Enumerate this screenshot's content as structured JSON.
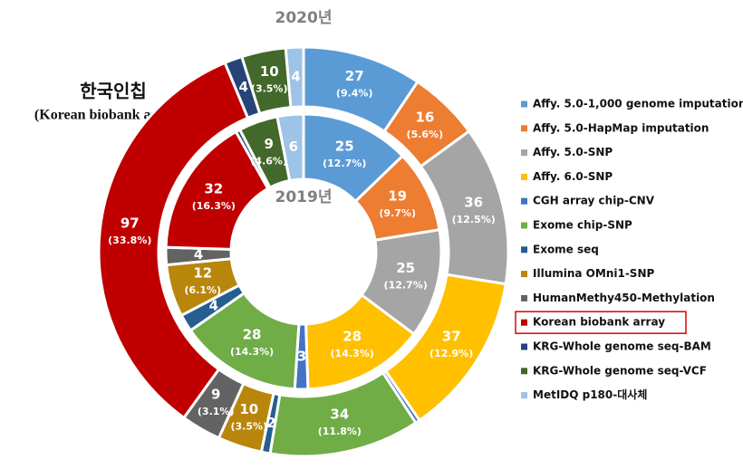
{
  "chart_data": {
    "type": "donut",
    "annotation": [
      "한국인칩",
      "(Korean biobank array)"
    ],
    "categories": [
      "Affy. 5.0-1,000 genome imputation",
      "Affy. 5.0-HapMap imputation",
      "Affy. 5.0-SNP",
      "Affy. 6.0-SNP",
      "CGH array chip-CNV",
      "Exome chip-SNP",
      "Exome seq",
      "Illumina OMni1-SNP",
      "HumanMethy450-Methylation",
      "Korean biobank array",
      "KRG-Whole genome seq-BAM",
      "KRG-Whole genome seq-VCF",
      "MetIDQ p180-대사체"
    ],
    "colors": [
      "#5b9bd5",
      "#ed7d31",
      "#a5a5a5",
      "#ffc000",
      "#4472c4",
      "#70ad47",
      "#255e91",
      "#b8860b",
      "#636363",
      "#c00000",
      "#264478",
      "#43682b",
      "#9dc3e6"
    ],
    "highlight_category": 9,
    "series": [
      {
        "name": "2020년",
        "values": [
          27,
          16,
          36,
          37,
          1,
          34,
          2,
          10,
          9,
          97,
          4,
          10,
          4
        ],
        "value_labels": [
          "27",
          "16",
          "36",
          "37",
          null,
          "34",
          "2",
          "10",
          "9",
          "97",
          "4",
          "10",
          "4"
        ],
        "percent_labels": [
          "(9.4%)",
          "(5.6%)",
          "(12.5%)",
          "(12.9%)",
          null,
          "(11.8%)",
          null,
          "(3.5%)",
          "(3.1%)",
          "(33.8%)",
          null,
          "(3.5%)",
          null
        ]
      },
      {
        "name": "2019년",
        "values": [
          25,
          19,
          25,
          28,
          3,
          28,
          4,
          12,
          4,
          32,
          1,
          9,
          6
        ],
        "value_labels": [
          "25",
          "19",
          "25",
          "28",
          "3",
          "28",
          "4",
          "12",
          "4",
          "32",
          null,
          "9",
          "6"
        ],
        "percent_labels": [
          "(12.7%)",
          "(9.7%)",
          "(12.7%)",
          "(14.3%)",
          null,
          "(14.3%)",
          null,
          "(6.1%)",
          null,
          "(16.3%)",
          null,
          "(4.6%)",
          null
        ]
      }
    ]
  }
}
